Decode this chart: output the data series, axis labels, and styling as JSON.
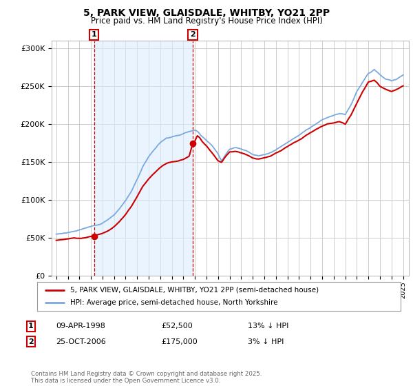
{
  "title1": "5, PARK VIEW, GLAISDALE, WHITBY, YO21 2PP",
  "title2": "Price paid vs. HM Land Registry's House Price Index (HPI)",
  "legend_line1": "5, PARK VIEW, GLAISDALE, WHITBY, YO21 2PP (semi-detached house)",
  "legend_line2": "HPI: Average price, semi-detached house, North Yorkshire",
  "annotation1_date": "09-APR-1998",
  "annotation1_price": "£52,500",
  "annotation1_hpi": "13% ↓ HPI",
  "annotation2_date": "25-OCT-2006",
  "annotation2_price": "£175,000",
  "annotation2_hpi": "3% ↓ HPI",
  "footer": "Contains HM Land Registry data © Crown copyright and database right 2025.\nThis data is licensed under the Open Government Licence v3.0.",
  "sale1_x": 1998.27,
  "sale1_y": 52500,
  "sale2_x": 2006.81,
  "sale2_y": 175000,
  "ylim": [
    0,
    310000
  ],
  "xlim_start": 1994.6,
  "xlim_end": 2025.5,
  "background_color": "#ffffff",
  "plot_bg_color": "#ffffff",
  "grid_color": "#cccccc",
  "shade_color": "#ddeeff",
  "red_line_color": "#cc0000",
  "blue_line_color": "#7aaadd",
  "hpi_points": [
    [
      1995.0,
      55000
    ],
    [
      1995.5,
      56000
    ],
    [
      1996.0,
      57500
    ],
    [
      1996.5,
      59000
    ],
    [
      1997.0,
      61000
    ],
    [
      1997.5,
      63000
    ],
    [
      1998.0,
      65000
    ],
    [
      1998.5,
      67000
    ],
    [
      1999.0,
      70000
    ],
    [
      1999.5,
      75000
    ],
    [
      2000.0,
      81000
    ],
    [
      2000.5,
      90000
    ],
    [
      2001.0,
      100000
    ],
    [
      2001.5,
      112000
    ],
    [
      2002.0,
      128000
    ],
    [
      2002.5,
      145000
    ],
    [
      2003.0,
      158000
    ],
    [
      2003.5,
      168000
    ],
    [
      2004.0,
      177000
    ],
    [
      2004.5,
      183000
    ],
    [
      2005.0,
      185000
    ],
    [
      2005.5,
      187000
    ],
    [
      2006.0,
      190000
    ],
    [
      2006.5,
      193000
    ],
    [
      2007.0,
      195000
    ],
    [
      2007.25,
      193000
    ],
    [
      2007.5,
      188000
    ],
    [
      2008.0,
      182000
    ],
    [
      2008.5,
      175000
    ],
    [
      2009.0,
      165000
    ],
    [
      2009.3,
      155000
    ],
    [
      2009.6,
      162000
    ],
    [
      2010.0,
      170000
    ],
    [
      2010.5,
      172000
    ],
    [
      2011.0,
      170000
    ],
    [
      2011.5,
      167000
    ],
    [
      2012.0,
      163000
    ],
    [
      2012.5,
      162000
    ],
    [
      2013.0,
      163000
    ],
    [
      2013.5,
      166000
    ],
    [
      2014.0,
      170000
    ],
    [
      2014.5,
      175000
    ],
    [
      2015.0,
      180000
    ],
    [
      2015.5,
      185000
    ],
    [
      2016.0,
      190000
    ],
    [
      2016.5,
      195000
    ],
    [
      2017.0,
      200000
    ],
    [
      2017.5,
      205000
    ],
    [
      2018.0,
      210000
    ],
    [
      2018.5,
      213000
    ],
    [
      2019.0,
      215000
    ],
    [
      2019.5,
      217000
    ],
    [
      2020.0,
      215000
    ],
    [
      2020.5,
      228000
    ],
    [
      2021.0,
      245000
    ],
    [
      2021.5,
      258000
    ],
    [
      2022.0,
      270000
    ],
    [
      2022.5,
      275000
    ],
    [
      2022.75,
      272000
    ],
    [
      2023.0,
      268000
    ],
    [
      2023.5,
      262000
    ],
    [
      2024.0,
      260000
    ],
    [
      2024.5,
      263000
    ],
    [
      2025.0,
      268000
    ]
  ],
  "red_points_seg1": [
    [
      1995.0,
      47000
    ],
    [
      1995.5,
      48000
    ],
    [
      1996.0,
      48500
    ],
    [
      1996.5,
      49500
    ],
    [
      1997.0,
      49000
    ],
    [
      1997.5,
      50000
    ],
    [
      1998.0,
      52000
    ],
    [
      1998.27,
      52500
    ],
    [
      1998.5,
      53500
    ],
    [
      1999.0,
      56000
    ],
    [
      1999.5,
      60000
    ],
    [
      2000.0,
      65000
    ],
    [
      2000.5,
      72000
    ],
    [
      2001.0,
      81000
    ],
    [
      2001.5,
      91000
    ],
    [
      2002.0,
      104000
    ],
    [
      2002.5,
      118000
    ],
    [
      2003.0,
      128000
    ],
    [
      2003.5,
      136000
    ],
    [
      2004.0,
      143000
    ],
    [
      2004.5,
      148000
    ],
    [
      2005.0,
      150000
    ],
    [
      2005.5,
      151000
    ],
    [
      2006.0,
      154000
    ],
    [
      2006.5,
      158000
    ],
    [
      2006.81,
      175000
    ]
  ],
  "red_points_seg2": [
    [
      2006.81,
      175000
    ],
    [
      2007.0,
      178000
    ],
    [
      2007.2,
      185000
    ],
    [
      2007.4,
      183000
    ],
    [
      2007.6,
      178000
    ],
    [
      2008.0,
      172000
    ],
    [
      2008.5,
      163000
    ],
    [
      2009.0,
      153000
    ],
    [
      2009.3,
      151000
    ],
    [
      2009.6,
      158000
    ],
    [
      2010.0,
      165000
    ],
    [
      2010.5,
      166000
    ],
    [
      2011.0,
      164000
    ],
    [
      2011.5,
      161000
    ],
    [
      2012.0,
      157000
    ],
    [
      2012.5,
      156000
    ],
    [
      2013.0,
      158000
    ],
    [
      2013.5,
      160000
    ],
    [
      2014.0,
      164000
    ],
    [
      2014.5,
      168000
    ],
    [
      2015.0,
      173000
    ],
    [
      2015.5,
      178000
    ],
    [
      2016.0,
      182000
    ],
    [
      2016.5,
      187000
    ],
    [
      2017.0,
      192000
    ],
    [
      2017.5,
      196000
    ],
    [
      2018.0,
      200000
    ],
    [
      2018.5,
      203000
    ],
    [
      2019.0,
      204000
    ],
    [
      2019.5,
      206000
    ],
    [
      2020.0,
      203000
    ],
    [
      2020.5,
      215000
    ],
    [
      2021.0,
      230000
    ],
    [
      2021.5,
      245000
    ],
    [
      2022.0,
      258000
    ],
    [
      2022.5,
      260000
    ],
    [
      2022.75,
      257000
    ],
    [
      2023.0,
      252000
    ],
    [
      2023.5,
      248000
    ],
    [
      2024.0,
      245000
    ],
    [
      2024.5,
      248000
    ],
    [
      2025.0,
      252000
    ]
  ]
}
